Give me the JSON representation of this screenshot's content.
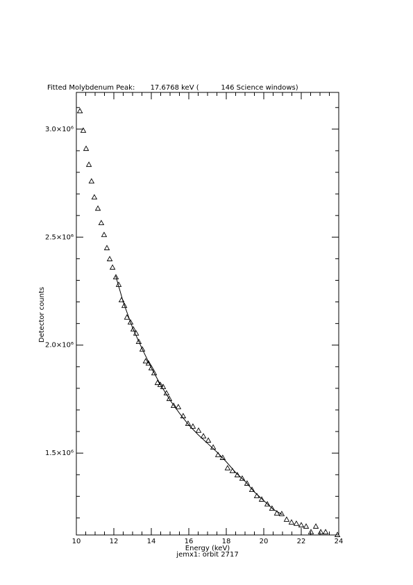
{
  "chart_data": {
    "type": "scatter",
    "title": "Fitted Molybdenum Peak:       17.6768 keV (          146 Science windows)",
    "subtitle": "jemx1: orbit 2717",
    "x_label": "Energy (keV)",
    "y_label": "Detector counts",
    "xlim": [
      10,
      24
    ],
    "xticks": [
      10,
      12,
      14,
      16,
      18,
      20,
      22,
      24
    ],
    "ylim": [
      1121000,
      3170000
    ],
    "yticks": [
      {
        "value": 1500000,
        "label": "1.5×10⁶"
      },
      {
        "value": 2000000,
        "label": "2.0×10⁶"
      },
      {
        "value": 2500000,
        "label": "2.5×10⁶"
      },
      {
        "value": 3000000,
        "label": "3.0×10⁶"
      }
    ],
    "color": "#000000",
    "series": [
      {
        "marker": "triangle",
        "x": [
          10.19,
          10.37,
          10.52,
          10.67,
          10.81,
          10.96,
          11.15,
          11.33,
          11.48,
          11.63,
          11.78,
          11.93,
          12.11,
          12.26,
          12.41,
          12.56,
          12.7,
          12.89,
          13.04,
          13.19,
          13.33,
          13.52,
          13.7,
          13.85,
          14.0,
          14.15,
          14.33,
          14.48,
          14.63,
          14.81,
          14.96,
          15.19,
          15.44,
          15.7,
          15.96,
          16.22,
          16.52,
          16.78,
          17.04,
          17.3,
          17.56,
          17.81,
          18.07,
          18.33,
          18.59,
          18.85,
          19.11,
          19.37,
          19.63,
          19.89,
          20.19,
          20.44,
          20.7,
          20.96,
          21.22,
          21.48,
          21.74,
          22.0,
          22.26,
          22.52,
          22.78,
          23.04,
          23.3,
          23.93
        ],
        "values": [
          3084000,
          2994000,
          2910000,
          2836000,
          2759000,
          2685000,
          2633000,
          2566000,
          2511000,
          2450000,
          2399000,
          2360000,
          2315000,
          2280000,
          2209000,
          2183000,
          2129000,
          2106000,
          2074000,
          2055000,
          2016000,
          1981000,
          1926000,
          1916000,
          1894000,
          1871000,
          1826000,
          1817000,
          1807000,
          1778000,
          1752000,
          1720000,
          1714000,
          1672000,
          1637000,
          1624000,
          1605000,
          1579000,
          1559000,
          1527000,
          1492000,
          1479000,
          1431000,
          1418000,
          1399000,
          1383000,
          1360000,
          1331000,
          1302000,
          1286000,
          1264000,
          1244000,
          1222000,
          1219000,
          1193000,
          1180000,
          1174000,
          1167000,
          1161000,
          1135000,
          1161000,
          1135000,
          1135000,
          1122000
        ]
      },
      {
        "marker": "line",
        "x": [
          12.1,
          12.5,
          13,
          13.5,
          14,
          14.5,
          15,
          15.5,
          16,
          16.5,
          17,
          17.5,
          18,
          18.5,
          19,
          19.5,
          20,
          20.5,
          21
        ],
        "values": [
          2320000,
          2200000,
          2080000,
          1985000,
          1895000,
          1815000,
          1745000,
          1685000,
          1630000,
          1585000,
          1545000,
          1505000,
          1460000,
          1410000,
          1370000,
          1320000,
          1280000,
          1240000,
          1215000
        ]
      }
    ]
  }
}
